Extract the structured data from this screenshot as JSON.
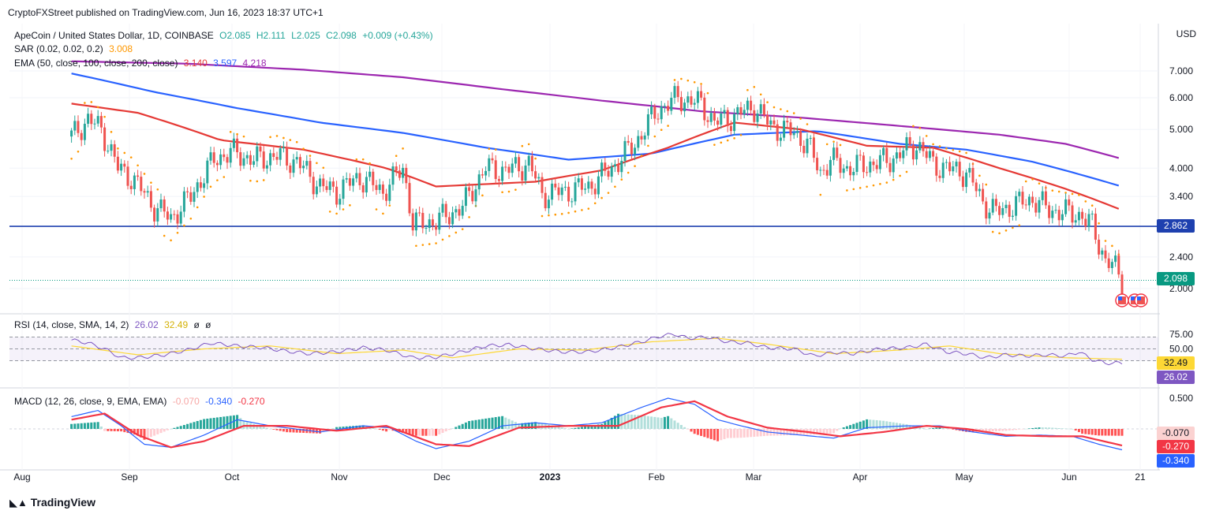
{
  "publisher": "CryptoFXStreet published on TradingView.com, Jun 16, 2023 18:37 UTC+1",
  "currency": "USD",
  "brand": "TradingView",
  "symbol": {
    "title": "ApeCoin / United States Dollar, 1D, COINBASE",
    "open": "O2.085",
    "high": "H2.111",
    "low": "L2.025",
    "close": "C2.098",
    "change": "+0.009 (+0.43%)"
  },
  "sar": {
    "label": "SAR (0.02, 0.02, 0.2)",
    "value": "3.008"
  },
  "ema": {
    "label": "EMA (50, close, 100, close, 200, close)",
    "v50": "3.140",
    "v100": "3.597",
    "v200": "4.218"
  },
  "rsi": {
    "label": "RSI (14, close, SMA, 14, 2)",
    "value": "26.02",
    "sma": "32.49",
    "e1": "ø",
    "e2": "ø"
  },
  "macd": {
    "label": "MACD (12, 26, close, 9, EMA, EMA)",
    "hist": "-0.070",
    "macd": "-0.340",
    "signal": "-0.270"
  },
  "colors": {
    "up": "#26a69a",
    "down": "#ef5350",
    "ema50": "#e53935",
    "ema100": "#2962ff",
    "ema200": "#9c27b0",
    "sar": "#ff9800",
    "rsi": "#7e57c2",
    "rsi_sma": "#fdd835",
    "macd": "#2962ff",
    "signal": "#f23645",
    "level": "#1e40af"
  },
  "chart_data": {
    "type": "candlestick",
    "x_labels": [
      "Aug",
      "Sep",
      "Oct",
      "Nov",
      "Dec",
      "2023",
      "Feb",
      "Mar",
      "Apr",
      "May",
      "Jun",
      "21"
    ],
    "price_axis": {
      "scale": "log",
      "ticks": [
        "7.000",
        "6.000",
        "5.000",
        "4.000",
        "3.400",
        "2.400",
        "2.000"
      ],
      "horizontal_level": "2.862",
      "last_price": "2.098"
    },
    "close_trajectory": [
      [
        0,
        4.8
      ],
      [
        5,
        5.3
      ],
      [
        9,
        5.0
      ],
      [
        14,
        4.0
      ],
      [
        18,
        3.8
      ],
      [
        25,
        3.2
      ],
      [
        30,
        3.0
      ],
      [
        36,
        3.4
      ],
      [
        43,
        4.2
      ],
      [
        48,
        4.4
      ],
      [
        55,
        4.2
      ],
      [
        62,
        4.3
      ],
      [
        68,
        4.15
      ],
      [
        75,
        3.6
      ],
      [
        80,
        3.5
      ],
      [
        87,
        3.8
      ],
      [
        94,
        3.5
      ],
      [
        100,
        4.0
      ],
      [
        103,
        2.9
      ],
      [
        110,
        2.95
      ],
      [
        118,
        3.2
      ],
      [
        125,
        4.0
      ],
      [
        131,
        3.95
      ],
      [
        138,
        4.1
      ],
      [
        142,
        3.45
      ],
      [
        149,
        3.5
      ],
      [
        156,
        3.6
      ],
      [
        163,
        4.0
      ],
      [
        170,
        4.6
      ],
      [
        177,
        5.6
      ],
      [
        183,
        6.0
      ],
      [
        190,
        5.8
      ],
      [
        194,
        5.2
      ],
      [
        200,
        5.4
      ],
      [
        206,
        5.7
      ],
      [
        211,
        5.1
      ],
      [
        218,
        4.9
      ],
      [
        222,
        4.6
      ],
      [
        226,
        3.9
      ],
      [
        229,
        4.2
      ],
      [
        234,
        4.0
      ],
      [
        241,
        4.1
      ],
      [
        247,
        4.2
      ],
      [
        251,
        4.4
      ],
      [
        255,
        4.6
      ],
      [
        260,
        4.1
      ],
      [
        264,
        4.0
      ],
      [
        270,
        3.9
      ],
      [
        275,
        3.3
      ],
      [
        279,
        3.1
      ],
      [
        285,
        3.25
      ],
      [
        290,
        3.35
      ],
      [
        295,
        3.15
      ],
      [
        300,
        3.1
      ],
      [
        305,
        3.05
      ],
      [
        306,
        2.95
      ],
      [
        308,
        2.88
      ],
      [
        310,
        2.6
      ],
      [
        312,
        2.35
      ],
      [
        315,
        2.25
      ],
      [
        317,
        2.098
      ]
    ],
    "ema50": [
      [
        0,
        5.8
      ],
      [
        20,
        5.5
      ],
      [
        45,
        4.7
      ],
      [
        70,
        4.45
      ],
      [
        95,
        4.0
      ],
      [
        110,
        3.6
      ],
      [
        140,
        3.7
      ],
      [
        160,
        3.95
      ],
      [
        180,
        4.5
      ],
      [
        200,
        5.2
      ],
      [
        220,
        5.0
      ],
      [
        240,
        4.55
      ],
      [
        260,
        4.5
      ],
      [
        280,
        4.0
      ],
      [
        300,
        3.55
      ],
      [
        317,
        3.14
      ]
    ],
    "ema100": [
      [
        0,
        6.9
      ],
      [
        25,
        6.2
      ],
      [
        50,
        5.65
      ],
      [
        75,
        5.2
      ],
      [
        100,
        4.9
      ],
      [
        125,
        4.5
      ],
      [
        150,
        4.2
      ],
      [
        175,
        4.35
      ],
      [
        200,
        4.85
      ],
      [
        225,
        4.95
      ],
      [
        250,
        4.6
      ],
      [
        270,
        4.45
      ],
      [
        290,
        4.15
      ],
      [
        317,
        3.597
      ]
    ],
    "ema200": [
      [
        0,
        7.4
      ],
      [
        35,
        7.3
      ],
      [
        70,
        7.05
      ],
      [
        100,
        6.75
      ],
      [
        130,
        6.3
      ],
      [
        160,
        5.9
      ],
      [
        190,
        5.55
      ],
      [
        220,
        5.35
      ],
      [
        250,
        5.1
      ],
      [
        280,
        4.85
      ],
      [
        300,
        4.6
      ],
      [
        317,
        4.218
      ]
    ],
    "rsi_axis_ticks": [
      "75.00",
      "50.00"
    ],
    "rsi_values": [
      [
        0,
        65
      ],
      [
        5,
        60
      ],
      [
        10,
        50
      ],
      [
        15,
        35
      ],
      [
        20,
        35
      ],
      [
        28,
        40
      ],
      [
        35,
        48
      ],
      [
        42,
        60
      ],
      [
        50,
        55
      ],
      [
        58,
        52
      ],
      [
        65,
        46
      ],
      [
        72,
        42
      ],
      [
        80,
        45
      ],
      [
        88,
        52
      ],
      [
        95,
        48
      ],
      [
        103,
        35
      ],
      [
        110,
        36
      ],
      [
        118,
        45
      ],
      [
        125,
        55
      ],
      [
        132,
        57
      ],
      [
        140,
        50
      ],
      [
        148,
        45
      ],
      [
        156,
        45
      ],
      [
        164,
        52
      ],
      [
        172,
        62
      ],
      [
        178,
        72
      ],
      [
        182,
        75
      ],
      [
        186,
        68
      ],
      [
        192,
        70
      ],
      [
        198,
        62
      ],
      [
        204,
        60
      ],
      [
        210,
        52
      ],
      [
        218,
        50
      ],
      [
        224,
        38
      ],
      [
        230,
        44
      ],
      [
        236,
        42
      ],
      [
        244,
        50
      ],
      [
        252,
        52
      ],
      [
        258,
        58
      ],
      [
        264,
        45
      ],
      [
        270,
        42
      ],
      [
        276,
        35
      ],
      [
        282,
        40
      ],
      [
        288,
        38
      ],
      [
        294,
        40
      ],
      [
        300,
        38
      ],
      [
        304,
        45
      ],
      [
        308,
        32
      ],
      [
        312,
        26
      ],
      [
        317,
        26.02
      ]
    ],
    "rsi_sma_values": [
      [
        0,
        55
      ],
      [
        20,
        40
      ],
      [
        40,
        50
      ],
      [
        60,
        55
      ],
      [
        80,
        42
      ],
      [
        100,
        48
      ],
      [
        115,
        35
      ],
      [
        135,
        50
      ],
      [
        155,
        48
      ],
      [
        175,
        62
      ],
      [
        195,
        68
      ],
      [
        210,
        58
      ],
      [
        230,
        42
      ],
      [
        250,
        48
      ],
      [
        265,
        55
      ],
      [
        280,
        42
      ],
      [
        300,
        35
      ],
      [
        317,
        32.49
      ]
    ],
    "macd_values": [
      [
        0,
        0.2
      ],
      [
        8,
        0.3
      ],
      [
        15,
        0.05
      ],
      [
        22,
        -0.25
      ],
      [
        30,
        -0.3
      ],
      [
        40,
        -0.1
      ],
      [
        50,
        0.15
      ],
      [
        60,
        0.05
      ],
      [
        75,
        -0.05
      ],
      [
        88,
        0.05
      ],
      [
        96,
        0.02
      ],
      [
        104,
        -0.2
      ],
      [
        110,
        -0.32
      ],
      [
        120,
        -0.2
      ],
      [
        130,
        0.05
      ],
      [
        140,
        0.1
      ],
      [
        150,
        0.05
      ],
      [
        160,
        0.1
      ],
      [
        172,
        0.35
      ],
      [
        180,
        0.5
      ],
      [
        188,
        0.4
      ],
      [
        195,
        0.15
      ],
      [
        202,
        0.05
      ],
      [
        210,
        -0.05
      ],
      [
        220,
        -0.1
      ],
      [
        230,
        -0.15
      ],
      [
        240,
        0.02
      ],
      [
        252,
        0.05
      ],
      [
        262,
        0.05
      ],
      [
        272,
        -0.05
      ],
      [
        282,
        -0.12
      ],
      [
        292,
        -0.1
      ],
      [
        302,
        -0.12
      ],
      [
        310,
        -0.25
      ],
      [
        317,
        -0.34
      ]
    ],
    "signal_values": [
      [
        0,
        0.15
      ],
      [
        10,
        0.25
      ],
      [
        20,
        -0.1
      ],
      [
        30,
        -0.3
      ],
      [
        40,
        -0.2
      ],
      [
        52,
        0.05
      ],
      [
        65,
        0.05
      ],
      [
        80,
        -0.03
      ],
      [
        95,
        0.05
      ],
      [
        110,
        -0.25
      ],
      [
        120,
        -0.28
      ],
      [
        135,
        0.02
      ],
      [
        150,
        0.05
      ],
      [
        165,
        0.05
      ],
      [
        178,
        0.35
      ],
      [
        188,
        0.45
      ],
      [
        198,
        0.2
      ],
      [
        210,
        0.02
      ],
      [
        222,
        -0.05
      ],
      [
        232,
        -0.12
      ],
      [
        245,
        -0.05
      ],
      [
        258,
        0.05
      ],
      [
        270,
        0.0
      ],
      [
        282,
        -0.1
      ],
      [
        295,
        -0.12
      ],
      [
        305,
        -0.12
      ],
      [
        317,
        -0.27
      ]
    ],
    "macd_axis_ticks": [
      "0.500"
    ]
  }
}
